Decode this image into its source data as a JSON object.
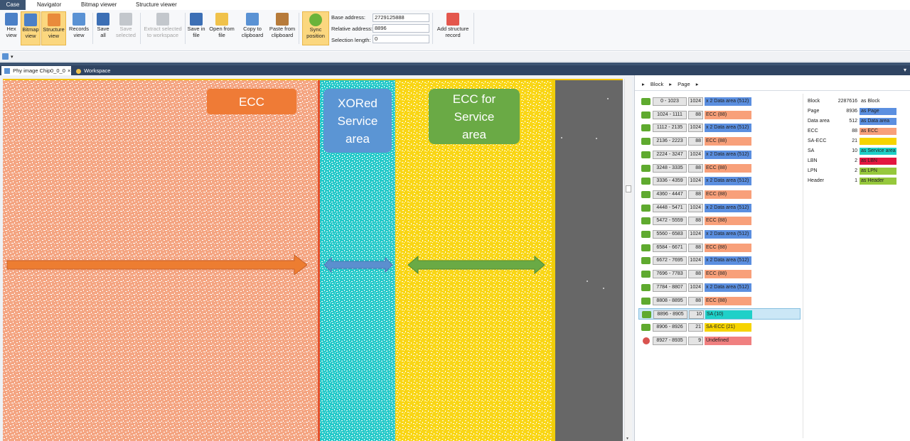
{
  "menu_tabs": [
    {
      "label": "Case",
      "active": true
    },
    {
      "label": "Navigator",
      "active": false
    },
    {
      "label": "Bitmap viewer",
      "active": false
    },
    {
      "label": "Structure viewer",
      "active": false
    }
  ],
  "ribbon": {
    "buttons": [
      {
        "id": "hex",
        "label": "Hex\nview",
        "icon": "hex-view-icon",
        "state": "normal"
      },
      {
        "id": "bitmap",
        "label": "Bitmap\nview",
        "icon": "bitmap-view-icon",
        "state": "active"
      },
      {
        "id": "structure",
        "label": "Structure\nview",
        "icon": "structure-view-icon",
        "state": "active"
      },
      {
        "id": "records",
        "label": "Records\nview",
        "icon": "records-view-icon",
        "state": "normal"
      },
      {
        "id": "save-all",
        "label": "Save\nall",
        "icon": "save-icon",
        "state": "normal"
      },
      {
        "id": "save-selected",
        "label": "Save\nselected",
        "icon": "save-icon",
        "state": "disabled"
      },
      {
        "id": "extract",
        "label": "Extract selected\nto workspace",
        "icon": "extract-icon",
        "state": "disabled"
      },
      {
        "id": "save-file",
        "label": "Save in\nfile",
        "icon": "save-icon",
        "state": "normal"
      },
      {
        "id": "open-file",
        "label": "Open from\nfile",
        "icon": "folder-icon",
        "state": "normal"
      },
      {
        "id": "copy",
        "label": "Copy to\nclipboard",
        "icon": "copy-icon",
        "state": "normal"
      },
      {
        "id": "paste",
        "label": "Paste from\nclipboard",
        "icon": "paste-icon",
        "state": "normal"
      },
      {
        "id": "sync",
        "label": "Sync\nposition",
        "icon": "sync-icon",
        "state": "active"
      },
      {
        "id": "add-record",
        "label": "Add structure\nrecord",
        "icon": "add-record-icon",
        "state": "normal"
      }
    ],
    "address": {
      "base_label": "Base address:",
      "base_value": "2729125888",
      "relative_label": "Relative address:",
      "relative_value": "8896",
      "selection_label": "Selection length:",
      "selection_value": "0"
    }
  },
  "doc_tabs": [
    {
      "label": "Phy image Chip0_0_0",
      "close": "×",
      "active": true
    },
    {
      "label": "Workspace",
      "active": false
    }
  ],
  "bitmap": {
    "annotations": [
      {
        "text": "ECC"
      },
      {
        "text": "XORed Service area"
      },
      {
        "text": "ECC for Service area"
      }
    ],
    "colors": {
      "ecc": "#f4a582",
      "service": "#22c8c8",
      "ecc_service": "#f9d616",
      "undefined": "#676767",
      "ecc_box": "#ef7b36",
      "xor_box": "#5b95d4",
      "ecc_sa_box": "#6aaa45"
    }
  },
  "structure": {
    "breadcrumb": [
      "Block",
      "Page"
    ],
    "rows": [
      {
        "range": "0 - 1023",
        "size": "1024",
        "type": "x 2 Data area (512)",
        "kind": "data"
      },
      {
        "range": "1024 - 1111",
        "size": "88",
        "type": "ECC (88)",
        "kind": "ecc"
      },
      {
        "range": "1112 - 2135",
        "size": "1024",
        "type": "x 2 Data area (512)",
        "kind": "data"
      },
      {
        "range": "2136 - 2223",
        "size": "88",
        "type": "ECC (88)",
        "kind": "ecc"
      },
      {
        "range": "2224 - 3247",
        "size": "1024",
        "type": "x 2 Data area (512)",
        "kind": "data"
      },
      {
        "range": "3248 - 3335",
        "size": "88",
        "type": "ECC (88)",
        "kind": "ecc"
      },
      {
        "range": "3336 - 4359",
        "size": "1024",
        "type": "x 2 Data area (512)",
        "kind": "data"
      },
      {
        "range": "4360 - 4447",
        "size": "88",
        "type": "ECC (88)",
        "kind": "ecc"
      },
      {
        "range": "4448 - 5471",
        "size": "1024",
        "type": "x 2 Data area (512)",
        "kind": "data"
      },
      {
        "range": "5472 - 5559",
        "size": "88",
        "type": "ECC (88)",
        "kind": "ecc"
      },
      {
        "range": "5560 - 6583",
        "size": "1024",
        "type": "x 2 Data area (512)",
        "kind": "data"
      },
      {
        "range": "6584 - 6671",
        "size": "88",
        "type": "ECC (88)",
        "kind": "ecc"
      },
      {
        "range": "6672 - 7695",
        "size": "1024",
        "type": "x 2 Data area (512)",
        "kind": "data"
      },
      {
        "range": "7696 - 7783",
        "size": "88",
        "type": "ECC (88)",
        "kind": "ecc"
      },
      {
        "range": "7784 - 8807",
        "size": "1024",
        "type": "x 2 Data area (512)",
        "kind": "data"
      },
      {
        "range": "8808 - 8895",
        "size": "88",
        "type": "ECC (88)",
        "kind": "ecc"
      },
      {
        "range": "8896 - 8905",
        "size": "10",
        "type": "SA (10)",
        "kind": "sa",
        "selected": true
      },
      {
        "range": "8906 - 8926",
        "size": "21",
        "type": "SA-ECC (21)",
        "kind": "saecc"
      },
      {
        "range": "8927 - 8935",
        "size": "9",
        "type": "Undefined",
        "kind": "undef"
      }
    ],
    "legend": [
      {
        "name": "Block",
        "count": "2287616",
        "as": "as Block",
        "color": ""
      },
      {
        "name": "Page",
        "count": "8936",
        "as": "as Page",
        "color": "#5b8fe0"
      },
      {
        "name": "Data area",
        "count": "512",
        "as": "as Data area",
        "color": "#5b8fe0"
      },
      {
        "name": "ECC",
        "count": "88",
        "as": "as ECC",
        "color": "#f8a07a"
      },
      {
        "name": "SA-ECC",
        "count": "21",
        "as": "",
        "color": "#f6d400"
      },
      {
        "name": "SA",
        "count": "10",
        "as": "as Service area",
        "color": "#1fd0c8"
      },
      {
        "name": "LBN",
        "count": "2",
        "as": "as LBN",
        "color": "#e3173f"
      },
      {
        "name": "LPN",
        "count": "2",
        "as": "as LPN",
        "color": "#96c83c"
      },
      {
        "name": "Header",
        "count": "1",
        "as": "as Header",
        "color": "#96c83c"
      }
    ],
    "kind_colors": {
      "data": "#5b8fe0",
      "ecc": "#f8a07a",
      "sa": "#1fd0c8",
      "saecc": "#f6d400",
      "undef": "#f08080"
    }
  }
}
